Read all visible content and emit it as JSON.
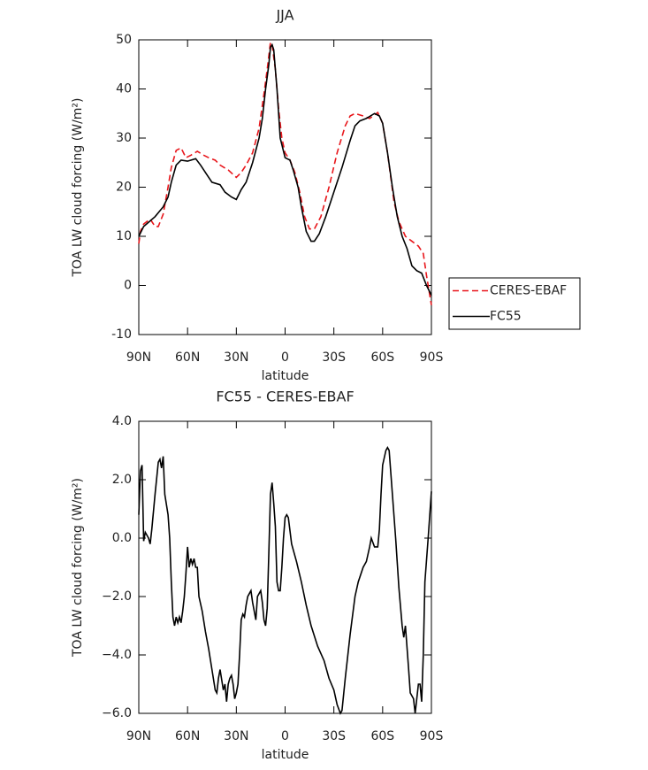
{
  "chart_data": [
    {
      "type": "line",
      "title": "JJA",
      "xlabel": "latitude",
      "ylabel": "TOA LW cloud forcing (W/m²)",
      "xlim": [
        90,
        -90
      ],
      "xticks": [
        {
          "value": 90,
          "label": "90N"
        },
        {
          "value": 60,
          "label": "60N"
        },
        {
          "value": 30,
          "label": "30N"
        },
        0,
        {
          "value": -30,
          "label": "30S"
        },
        {
          "value": -60,
          "label": "60S"
        },
        {
          "value": -90,
          "label": "90S"
        }
      ],
      "ylim": [
        -10,
        50
      ],
      "yticks": [
        -10,
        0,
        10,
        20,
        30,
        40,
        50
      ],
      "legend": "right",
      "series": [
        {
          "name": "CERES-EBAF",
          "color": "#e8161b",
          "dashed": true,
          "x": [
            90,
            89,
            87,
            83,
            80,
            78,
            75,
            72,
            70,
            67,
            64,
            61,
            58,
            54,
            50,
            47,
            43,
            40,
            35,
            30,
            27,
            24,
            20,
            16,
            13,
            11,
            9,
            8,
            6,
            4,
            2,
            0,
            -3,
            -6,
            -9,
            -12,
            -15,
            -18,
            -22,
            -27,
            -32,
            -37,
            -40,
            -43,
            -48,
            -52,
            -55,
            -57,
            -60,
            -63,
            -67,
            -70,
            -74,
            -78,
            -82,
            -85,
            -87,
            -90
          ],
          "values": [
            8.5,
            11,
            12.5,
            13.5,
            12,
            12,
            14.5,
            20,
            24,
            27.5,
            28,
            26,
            26.5,
            27.3,
            26.5,
            26,
            25.5,
            24.5,
            23.5,
            22,
            23,
            24.5,
            27,
            32,
            39,
            44,
            49.5,
            49,
            44,
            36,
            30,
            27,
            25.5,
            23,
            19,
            14,
            11.5,
            11.5,
            14,
            20,
            27,
            32.5,
            34.5,
            35,
            34.5,
            34,
            34.7,
            35.2,
            33,
            27,
            17,
            13,
            10,
            9,
            8,
            6.5,
            2,
            -4
          ]
        },
        {
          "name": "FC55",
          "color": "#000000",
          "dashed": false,
          "x": [
            90,
            87,
            80,
            75,
            72,
            70,
            67,
            64,
            60,
            55,
            52,
            48,
            45,
            40,
            37,
            33,
            30,
            27,
            24,
            20,
            16,
            14,
            12,
            10,
            9,
            8,
            7,
            5,
            3,
            0,
            -3,
            -5,
            -8,
            -10,
            -13,
            -16,
            -18,
            -21,
            -25,
            -30,
            -35,
            -40,
            -43,
            -46,
            -50,
            -55,
            -58,
            -60,
            -63,
            -66,
            -69,
            -72,
            -75,
            -78,
            -81,
            -84,
            -87,
            -90
          ],
          "values": [
            10,
            12,
            14,
            16,
            18,
            21,
            24.5,
            25.5,
            25.3,
            25.8,
            24.5,
            22.5,
            21,
            20.5,
            19,
            18,
            17.5,
            19.5,
            21,
            25,
            30,
            34,
            40,
            45,
            48.5,
            49,
            48,
            40,
            30,
            26,
            25.5,
            23.5,
            20,
            16,
            11,
            9,
            9,
            10.5,
            14,
            19,
            24,
            29.5,
            32.5,
            33.5,
            34,
            35,
            34.5,
            33,
            27,
            20,
            14,
            10,
            7.5,
            4,
            3,
            2.5,
            0,
            -2
          ]
        }
      ]
    },
    {
      "type": "line",
      "title": "FC55 - CERES-EBAF",
      "xlabel": "latitude",
      "ylabel": "TOA LW cloud forcing (W/m²)",
      "xlim": [
        90,
        -90
      ],
      "xticks": [
        {
          "value": 90,
          "label": "90N"
        },
        {
          "value": 60,
          "label": "60N"
        },
        {
          "value": 30,
          "label": "30N"
        },
        0,
        {
          "value": -30,
          "label": "30S"
        },
        {
          "value": -60,
          "label": "60S"
        },
        {
          "value": -90,
          "label": "90S"
        }
      ],
      "ylim": [
        -6,
        4
      ],
      "yticks": [
        {
          "value": -6,
          "label": "−6.0"
        },
        {
          "value": -4,
          "label": "−4.0"
        },
        {
          "value": -2,
          "label": "−2.0"
        },
        {
          "value": 0,
          "label": "0.0"
        },
        {
          "value": 2,
          "label": "2.0"
        },
        {
          "value": 4,
          "label": "4.0"
        }
      ],
      "series": [
        {
          "color": "#000000",
          "dashed": false,
          "x": [
            90,
            89,
            88,
            87,
            86,
            84,
            83,
            82,
            80,
            78,
            77,
            76,
            75,
            74,
            72,
            71,
            70,
            69,
            68,
            67,
            66,
            65,
            64,
            63,
            62,
            61,
            60,
            59,
            58,
            57,
            56,
            55,
            54,
            53,
            51,
            49,
            47,
            45,
            43,
            42,
            41,
            40,
            38,
            37,
            36,
            35,
            34,
            33,
            32,
            31,
            30,
            29,
            28,
            27,
            26,
            25,
            24,
            23,
            22,
            21,
            20,
            19,
            18,
            17,
            16,
            15,
            14,
            13,
            12,
            11,
            10,
            9,
            8,
            7,
            6,
            5,
            4,
            3,
            2,
            1,
            0,
            -1,
            -2,
            -4,
            -7,
            -10,
            -13,
            -16,
            -20,
            -24,
            -27,
            -30,
            -32,
            -34,
            -35,
            -37,
            -40,
            -43,
            -45,
            -48,
            -50,
            -52,
            -53,
            -55,
            -57,
            -58,
            -59,
            -60,
            -62,
            -63,
            -64,
            -66,
            -68,
            -70,
            -72,
            -73,
            -74,
            -76,
            -77,
            -79,
            -80,
            -81,
            -82,
            -83,
            -84,
            -85,
            -86,
            -88,
            -90
          ],
          "values": [
            0.8,
            2.3,
            2.5,
            -0.1,
            0.2,
            0,
            -0.2,
            0.3,
            1.5,
            2.6,
            2.7,
            2.4,
            2.8,
            1.5,
            0.8,
            0,
            -1.5,
            -2.7,
            -3,
            -2.7,
            -2.9,
            -2.7,
            -2.9,
            -2.5,
            -2,
            -1.2,
            -0.3,
            -1,
            -0.7,
            -0.9,
            -0.7,
            -1,
            -1,
            -2,
            -2.5,
            -3.2,
            -3.8,
            -4.5,
            -5.2,
            -5.3,
            -4.8,
            -4.5,
            -5.2,
            -5,
            -5.6,
            -5,
            -4.8,
            -4.7,
            -5,
            -5.5,
            -5.3,
            -5,
            -4,
            -2.8,
            -2.6,
            -2.7,
            -2.3,
            -2,
            -1.9,
            -1.8,
            -2.2,
            -2.5,
            -2.8,
            -2,
            -1.9,
            -1.8,
            -2.2,
            -2.8,
            -3,
            -2.4,
            -0.5,
            1.5,
            1.9,
            1.2,
            0.4,
            -1.5,
            -1.8,
            -1.8,
            -1,
            0,
            0.7,
            0.8,
            0.7,
            -0.2,
            -0.8,
            -1.5,
            -2.3,
            -3,
            -3.7,
            -4.2,
            -4.8,
            -5.2,
            -5.7,
            -6,
            -5.9,
            -4.8,
            -3.3,
            -2,
            -1.5,
            -1,
            -0.8,
            -0.3,
            0,
            -0.3,
            -0.3,
            0.3,
            1.5,
            2.5,
            3,
            3.1,
            3,
            1.5,
            0,
            -1.7,
            -3,
            -3.4,
            -3,
            -4.5,
            -5.3,
            -5.5,
            -6,
            -5.5,
            -5,
            -5,
            -5.6,
            -4,
            -1.5,
            0,
            1.6
          ]
        }
      ]
    }
  ]
}
